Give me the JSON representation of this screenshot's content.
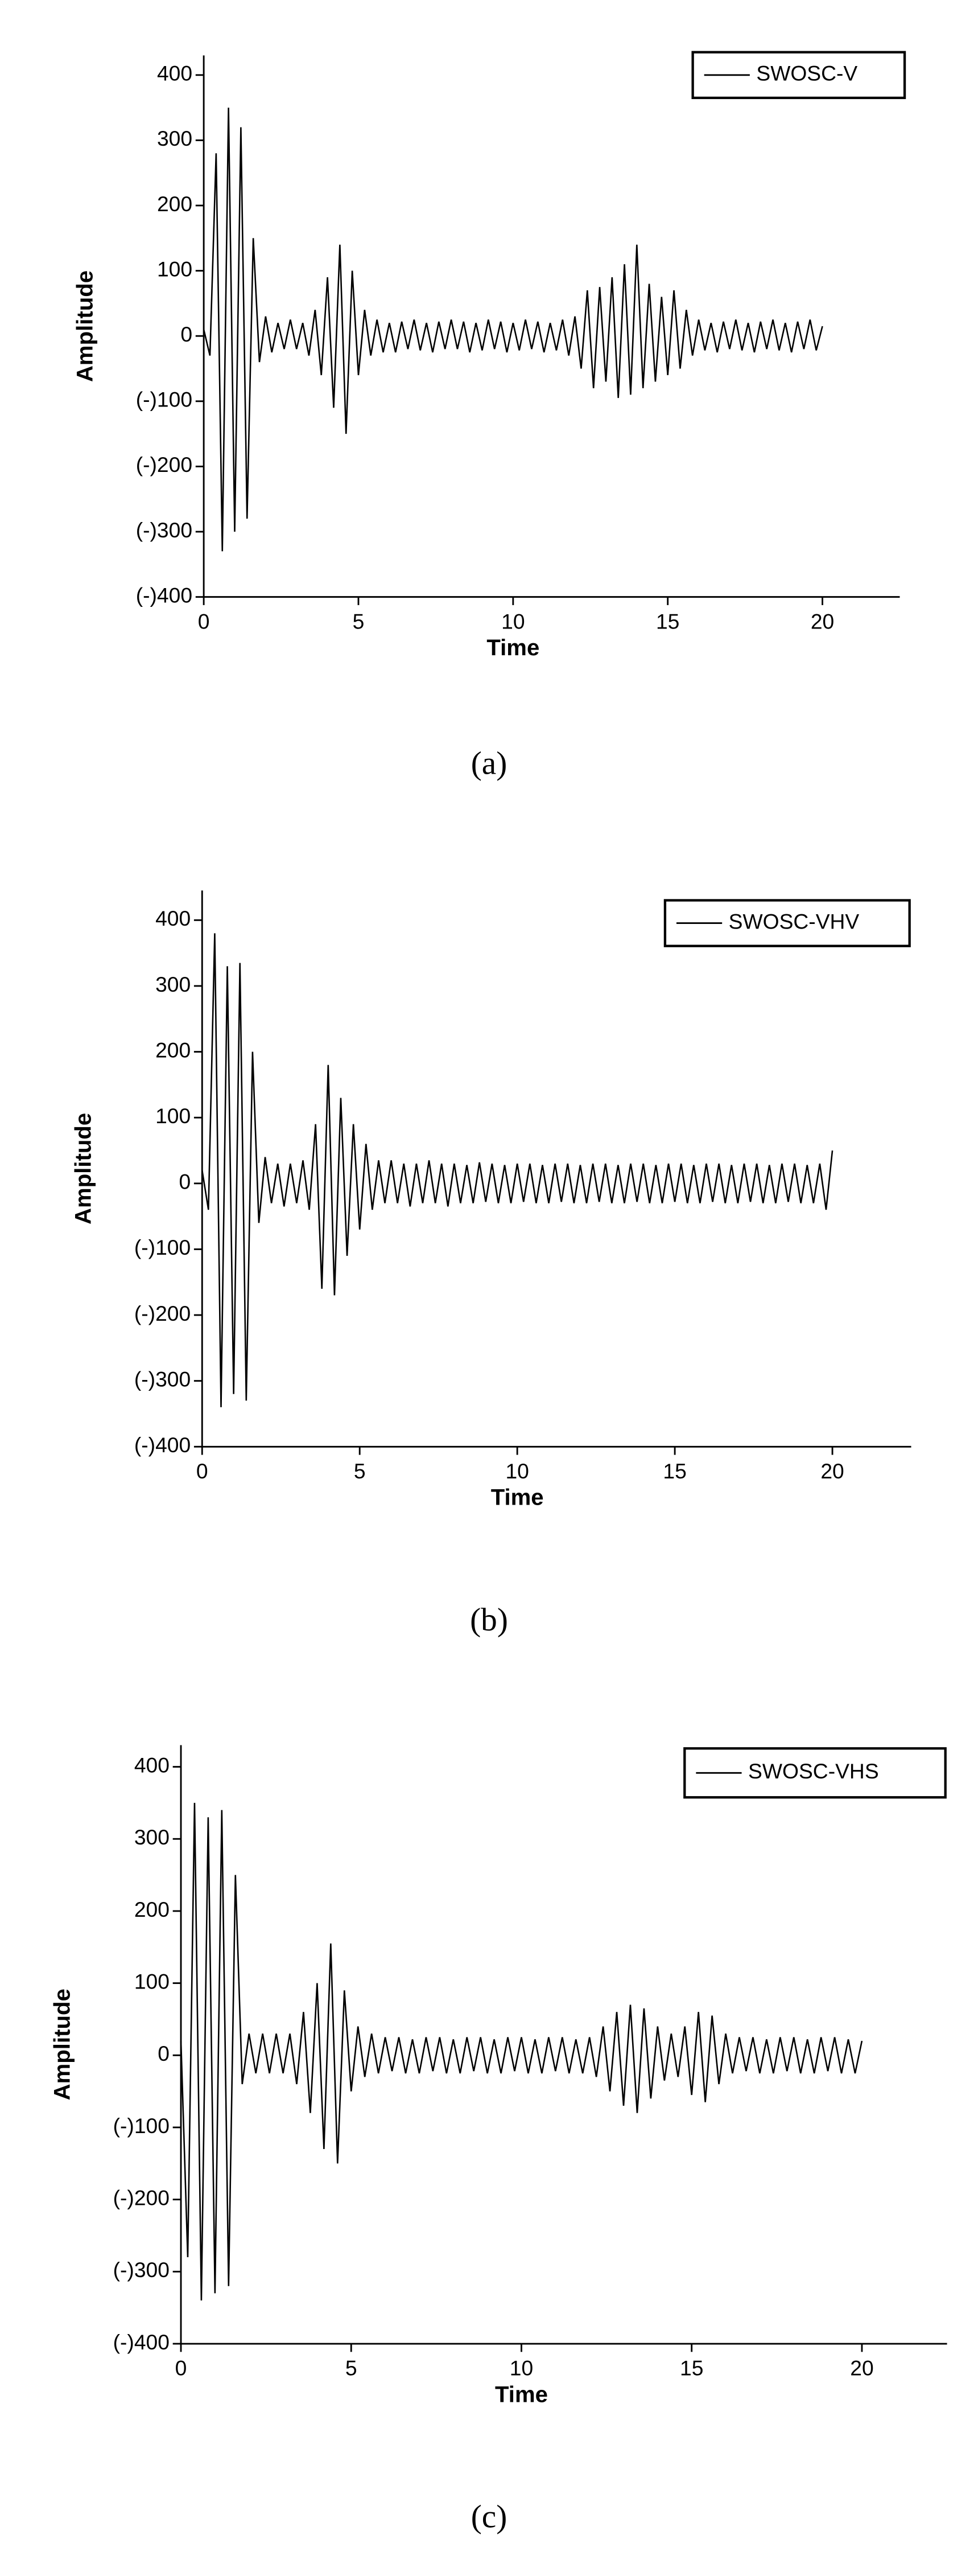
{
  "chart_data": [
    {
      "type": "line",
      "x_label": "Time",
      "y_label": "Amplitude",
      "caption": "(a)",
      "legend": "upper right",
      "xlim": [
        0,
        22.5
      ],
      "xticks": [
        0,
        5,
        10,
        15,
        20
      ],
      "ylim": [
        -400,
        430
      ],
      "yticks": [
        {
          "value": -400,
          "label": "(-)400"
        },
        {
          "value": -300,
          "label": "(-)300"
        },
        {
          "value": -200,
          "label": "(-)200"
        },
        {
          "value": -100,
          "label": "(-)100"
        },
        0,
        100,
        200,
        300,
        400
      ],
      "x": [
        0,
        0.2,
        0.4,
        0.6,
        0.8,
        1,
        1.2,
        1.4,
        1.6,
        1.8,
        2,
        2.2,
        2.4,
        2.6,
        2.8,
        3,
        3.2,
        3.4,
        3.6,
        3.8,
        4,
        4.2,
        4.4,
        4.6,
        4.8,
        5,
        5.2,
        5.4,
        5.6,
        5.8,
        6,
        6.2,
        6.4,
        6.6,
        6.8,
        7,
        7.2,
        7.4,
        7.6,
        7.8,
        8,
        8.2,
        8.4,
        8.6,
        8.8,
        9,
        9.2,
        9.4,
        9.6,
        9.8,
        10,
        10.2,
        10.4,
        10.6,
        10.8,
        11,
        11.2,
        11.4,
        11.6,
        11.8,
        12,
        12.2,
        12.4,
        12.6,
        12.8,
        13,
        13.2,
        13.4,
        13.6,
        13.8,
        14,
        14.2,
        14.4,
        14.6,
        14.8,
        15,
        15.2,
        15.4,
        15.6,
        15.8,
        16,
        16.2,
        16.4,
        16.6,
        16.8,
        17,
        17.2,
        17.4,
        17.6,
        17.8,
        18,
        18.2,
        18.4,
        18.6,
        18.8,
        19,
        19.2,
        19.4,
        19.6,
        19.8,
        20
      ],
      "series": [
        {
          "name": "SWOSC-V",
          "color": "#000000",
          "values": [
            10,
            -30,
            280,
            -330,
            350,
            -300,
            320,
            -280,
            150,
            -40,
            30,
            -25,
            20,
            -20,
            25,
            -20,
            20,
            -30,
            40,
            -60,
            90,
            -110,
            140,
            -150,
            100,
            -60,
            40,
            -30,
            25,
            -25,
            20,
            -25,
            22,
            -20,
            25,
            -22,
            20,
            -25,
            22,
            -20,
            25,
            -20,
            22,
            -25,
            20,
            -22,
            25,
            -20,
            22,
            -25,
            20,
            -22,
            25,
            -20,
            22,
            -25,
            20,
            -22,
            25,
            -30,
            30,
            -50,
            70,
            -80,
            75,
            -70,
            90,
            -95,
            110,
            -90,
            140,
            -80,
            80,
            -70,
            60,
            -60,
            70,
            -50,
            40,
            -30,
            25,
            -22,
            20,
            -25,
            22,
            -20,
            25,
            -22,
            20,
            -25,
            22,
            -20,
            25,
            -22,
            20,
            -25,
            22,
            -20,
            25,
            -22,
            15
          ]
        }
      ]
    },
    {
      "type": "line",
      "x_label": "Time",
      "y_label": "Amplitude",
      "caption": "(b)",
      "legend": "upper right",
      "xlim": [
        0,
        22.5
      ],
      "xticks": [
        0,
        5,
        10,
        15,
        20
      ],
      "ylim": [
        -400,
        445
      ],
      "yticks": [
        {
          "value": -400,
          "label": "(-)400"
        },
        {
          "value": -300,
          "label": "(-)300"
        },
        {
          "value": -200,
          "label": "(-)200"
        },
        {
          "value": -100,
          "label": "(-)100"
        },
        0,
        100,
        200,
        300,
        400
      ],
      "x": [
        0,
        0.2,
        0.4,
        0.6,
        0.8,
        1,
        1.2,
        1.4,
        1.6,
        1.8,
        2,
        2.2,
        2.4,
        2.6,
        2.8,
        3,
        3.2,
        3.4,
        3.6,
        3.8,
        4,
        4.2,
        4.4,
        4.6,
        4.8,
        5,
        5.2,
        5.4,
        5.6,
        5.8,
        6,
        6.2,
        6.4,
        6.6,
        6.8,
        7,
        7.2,
        7.4,
        7.6,
        7.8,
        8,
        8.2,
        8.4,
        8.6,
        8.8,
        9,
        9.2,
        9.4,
        9.6,
        9.8,
        10,
        10.2,
        10.4,
        10.6,
        10.8,
        11,
        11.2,
        11.4,
        11.6,
        11.8,
        12,
        12.2,
        12.4,
        12.6,
        12.8,
        13,
        13.2,
        13.4,
        13.6,
        13.8,
        14,
        14.2,
        14.4,
        14.6,
        14.8,
        15,
        15.2,
        15.4,
        15.6,
        15.8,
        16,
        16.2,
        16.4,
        16.6,
        16.8,
        17,
        17.2,
        17.4,
        17.6,
        17.8,
        18,
        18.2,
        18.4,
        18.6,
        18.8,
        19,
        19.2,
        19.4,
        19.6,
        19.8,
        20
      ],
      "series": [
        {
          "name": "SWOSC-VHV",
          "color": "#000000",
          "values": [
            20,
            -40,
            380,
            -340,
            330,
            -320,
            335,
            -330,
            200,
            -60,
            40,
            -30,
            30,
            -35,
            30,
            -30,
            35,
            -40,
            90,
            -160,
            180,
            -170,
            130,
            -110,
            90,
            -70,
            60,
            -40,
            35,
            -30,
            35,
            -30,
            30,
            -35,
            30,
            -30,
            35,
            -30,
            30,
            -35,
            30,
            -30,
            28,
            -30,
            32,
            -28,
            30,
            -30,
            28,
            -30,
            30,
            -28,
            30,
            -30,
            28,
            -30,
            30,
            -28,
            30,
            -30,
            28,
            -30,
            30,
            -28,
            30,
            -30,
            28,
            -30,
            30,
            -28,
            30,
            -30,
            28,
            -30,
            30,
            -28,
            30,
            -30,
            28,
            -30,
            30,
            -28,
            30,
            -30,
            28,
            -30,
            30,
            -28,
            30,
            -30,
            28,
            -30,
            30,
            -28,
            30,
            -30,
            28,
            -30,
            30,
            -40,
            50
          ]
        }
      ]
    },
    {
      "type": "line",
      "x_label": "Time",
      "y_label": "Amplitude",
      "caption": "(c)",
      "legend": "upper right",
      "xlim": [
        0,
        22.5
      ],
      "xticks": [
        0,
        5,
        10,
        15,
        20
      ],
      "ylim": [
        -400,
        430
      ],
      "yticks": [
        {
          "value": -400,
          "label": "(-)400"
        },
        {
          "value": -300,
          "label": "(-)300"
        },
        {
          "value": -200,
          "label": "(-)200"
        },
        {
          "value": -100,
          "label": "(-)100"
        },
        0,
        100,
        200,
        300,
        400
      ],
      "x": [
        0,
        0.2,
        0.4,
        0.6,
        0.8,
        1,
        1.2,
        1.4,
        1.6,
        1.8,
        2,
        2.2,
        2.4,
        2.6,
        2.8,
        3,
        3.2,
        3.4,
        3.6,
        3.8,
        4,
        4.2,
        4.4,
        4.6,
        4.8,
        5,
        5.2,
        5.4,
        5.6,
        5.8,
        6,
        6.2,
        6.4,
        6.6,
        6.8,
        7,
        7.2,
        7.4,
        7.6,
        7.8,
        8,
        8.2,
        8.4,
        8.6,
        8.8,
        9,
        9.2,
        9.4,
        9.6,
        9.8,
        10,
        10.2,
        10.4,
        10.6,
        10.8,
        11,
        11.2,
        11.4,
        11.6,
        11.8,
        12,
        12.2,
        12.4,
        12.6,
        12.8,
        13,
        13.2,
        13.4,
        13.6,
        13.8,
        14,
        14.2,
        14.4,
        14.6,
        14.8,
        15,
        15.2,
        15.4,
        15.6,
        15.8,
        16,
        16.2,
        16.4,
        16.6,
        16.8,
        17,
        17.2,
        17.4,
        17.6,
        17.8,
        18,
        18.2,
        18.4,
        18.6,
        18.8,
        19,
        19.2,
        19.4,
        19.6,
        19.8,
        20
      ],
      "series": [
        {
          "name": "SWOSC-VHS",
          "color": "#000000",
          "values": [
            20,
            -280,
            350,
            -340,
            330,
            -330,
            340,
            -320,
            250,
            -40,
            30,
            -25,
            30,
            -25,
            30,
            -25,
            30,
            -40,
            60,
            -80,
            100,
            -130,
            155,
            -150,
            90,
            -50,
            40,
            -30,
            30,
            -25,
            25,
            -22,
            25,
            -25,
            22,
            -25,
            25,
            -22,
            25,
            -25,
            22,
            -25,
            25,
            -22,
            25,
            -25,
            22,
            -25,
            25,
            -22,
            25,
            -25,
            22,
            -25,
            25,
            -22,
            25,
            -25,
            22,
            -25,
            25,
            -30,
            40,
            -50,
            60,
            -70,
            70,
            -80,
            65,
            -60,
            40,
            -35,
            30,
            -30,
            40,
            -55,
            60,
            -65,
            55,
            -40,
            30,
            -25,
            25,
            -22,
            25,
            -25,
            22,
            -25,
            25,
            -22,
            25,
            -25,
            22,
            -25,
            25,
            -22,
            25,
            -25,
            22,
            -25,
            20
          ]
        }
      ]
    }
  ]
}
